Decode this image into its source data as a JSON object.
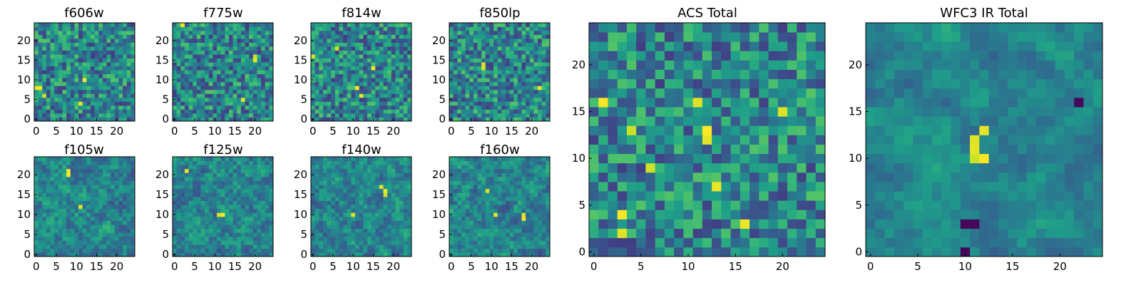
{
  "figure": {
    "background": "#ffffff",
    "colormap": "viridis"
  },
  "chart_data": [
    {
      "type": "heatmap",
      "title": "f606w",
      "size": 25,
      "seed": 11,
      "smooth": 0,
      "bright": [
        [
          0,
          8
        ],
        [
          1,
          8
        ],
        [
          2,
          6
        ],
        [
          12,
          10
        ],
        [
          11,
          4
        ]
      ],
      "xticks": [
        "0",
        "5",
        "10",
        "15",
        "20"
      ],
      "yticks": [
        "0",
        "5",
        "10",
        "15",
        "20"
      ],
      "xlim": [
        0,
        24
      ],
      "ylim": [
        0,
        24
      ]
    },
    {
      "type": "heatmap",
      "title": "f775w",
      "size": 25,
      "seed": 23,
      "smooth": 0,
      "bright": [
        [
          20,
          16
        ],
        [
          20,
          15
        ],
        [
          2,
          24
        ],
        [
          17,
          5
        ]
      ],
      "xticks": [
        "0",
        "5",
        "10",
        "15",
        "20"
      ],
      "yticks": [
        "0",
        "5",
        "10",
        "15",
        "20"
      ],
      "xlim": [
        0,
        24
      ],
      "ylim": [
        0,
        24
      ]
    },
    {
      "type": "heatmap",
      "title": "f814w",
      "size": 25,
      "seed": 37,
      "smooth": 0,
      "bright": [
        [
          0,
          16
        ],
        [
          12,
          6
        ],
        [
          11,
          8
        ],
        [
          15,
          13
        ],
        [
          6,
          18
        ]
      ],
      "xticks": [
        "0",
        "5",
        "10",
        "15",
        "20"
      ],
      "yticks": [
        "0",
        "5",
        "10",
        "15",
        "20"
      ],
      "xlim": [
        0,
        24
      ],
      "ylim": [
        0,
        24
      ]
    },
    {
      "type": "heatmap",
      "title": "f850lp",
      "size": 25,
      "seed": 41,
      "smooth": 0,
      "bright": [
        [
          8,
          14
        ],
        [
          8,
          13
        ],
        [
          22,
          8
        ]
      ],
      "xticks": [
        "0",
        "5",
        "10",
        "15",
        "20"
      ],
      "yticks": [
        "0",
        "5",
        "10",
        "15",
        "20"
      ],
      "xlim": [
        0,
        24
      ],
      "ylim": [
        0,
        24
      ]
    },
    {
      "type": "heatmap",
      "title": "f105w",
      "size": 25,
      "seed": 53,
      "smooth": 1,
      "bright": [
        [
          8,
          21
        ],
        [
          8,
          20
        ],
        [
          11,
          12
        ]
      ],
      "xticks": [
        "0",
        "5",
        "10",
        "15",
        "20"
      ],
      "yticks": [
        "0",
        "5",
        "10",
        "15",
        "20"
      ],
      "xlim": [
        0,
        24
      ],
      "ylim": [
        0,
        24
      ]
    },
    {
      "type": "heatmap",
      "title": "f125w",
      "size": 25,
      "seed": 67,
      "smooth": 1,
      "bright": [
        [
          11,
          10
        ],
        [
          12,
          10
        ],
        [
          3,
          21
        ]
      ],
      "xticks": [
        "0",
        "5",
        "10",
        "15",
        "20"
      ],
      "yticks": [
        "0",
        "5",
        "10",
        "15",
        "20"
      ],
      "xlim": [
        0,
        24
      ],
      "ylim": [
        0,
        24
      ]
    },
    {
      "type": "heatmap",
      "title": "f140w",
      "size": 25,
      "seed": 79,
      "smooth": 1,
      "bright": [
        [
          17,
          17
        ],
        [
          18,
          16
        ],
        [
          18,
          15
        ],
        [
          10,
          10
        ]
      ],
      "xticks": [
        "0",
        "5",
        "10",
        "15",
        "20"
      ],
      "yticks": [
        "0",
        "5",
        "10",
        "15",
        "20"
      ],
      "xlim": [
        0,
        24
      ],
      "ylim": [
        0,
        24
      ]
    },
    {
      "type": "heatmap",
      "title": "f160w",
      "size": 25,
      "seed": 83,
      "smooth": 1,
      "bright": [
        [
          11,
          10
        ],
        [
          18,
          10
        ],
        [
          18,
          9
        ],
        [
          9,
          16
        ]
      ],
      "xticks": [
        "0",
        "5",
        "10",
        "15",
        "20"
      ],
      "yticks": [
        "0",
        "5",
        "10",
        "15",
        "20"
      ],
      "xlim": [
        0,
        24
      ],
      "ylim": [
        0,
        24
      ]
    },
    {
      "type": "heatmap",
      "title": "ACS Total",
      "size": 25,
      "seed": 97,
      "smooth": 0,
      "bright": [
        [
          1,
          16
        ],
        [
          20,
          15
        ],
        [
          12,
          13
        ],
        [
          12,
          12
        ],
        [
          6,
          9
        ],
        [
          3,
          4
        ],
        [
          3,
          2
        ],
        [
          16,
          3
        ],
        [
          13,
          7
        ],
        [
          4,
          13
        ],
        [
          11,
          16
        ]
      ],
      "xticks": [
        "0",
        "5",
        "10",
        "15",
        "20"
      ],
      "yticks": [
        "0",
        "5",
        "10",
        "15",
        "20"
      ],
      "xlim": [
        0,
        24
      ],
      "ylim": [
        0,
        24
      ]
    },
    {
      "type": "heatmap",
      "title": "WFC3 IR Total",
      "size": 25,
      "seed": 101,
      "smooth": 2,
      "bright": [
        [
          11,
          10
        ],
        [
          12,
          10
        ],
        [
          11,
          11
        ],
        [
          11,
          12
        ],
        [
          12,
          13
        ]
      ],
      "dark": [
        [
          10,
          3
        ],
        [
          11,
          3
        ],
        [
          22,
          16
        ],
        [
          10,
          0
        ]
      ],
      "xticks": [
        "0",
        "5",
        "10",
        "15",
        "20"
      ],
      "yticks": [
        "0",
        "5",
        "10",
        "15",
        "20"
      ],
      "xlim": [
        0,
        24
      ],
      "ylim": [
        0,
        24
      ]
    }
  ]
}
